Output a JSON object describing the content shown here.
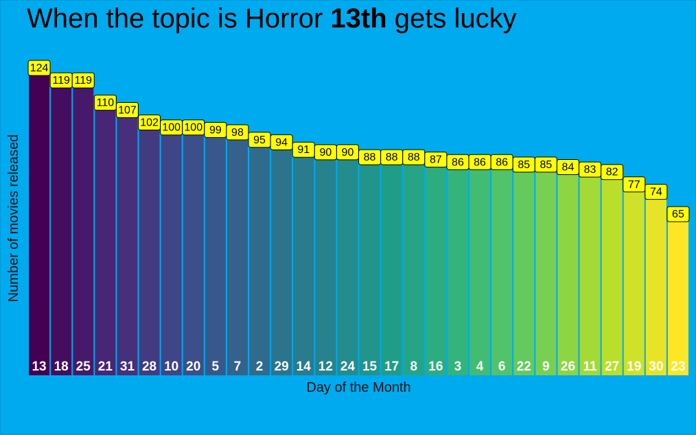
{
  "title": {
    "prefix": "When the topic is Horror ",
    "emphasis": "13th",
    "suffix": " gets lucky"
  },
  "chart_data": {
    "type": "bar",
    "xlabel": "Day of the Month",
    "ylabel": "Number of movies released",
    "ylim": [
      0,
      124
    ],
    "grid": false,
    "legend": "none",
    "categories": [
      "13",
      "18",
      "25",
      "21",
      "31",
      "28",
      "10",
      "20",
      "5",
      "7",
      "2",
      "29",
      "14",
      "12",
      "24",
      "15",
      "17",
      "8",
      "16",
      "3",
      "4",
      "6",
      "22",
      "9",
      "26",
      "11",
      "27",
      "19",
      "30",
      "23"
    ],
    "values": [
      124,
      119,
      119,
      110,
      107,
      102,
      100,
      100,
      99,
      98,
      95,
      94,
      91,
      90,
      90,
      88,
      88,
      88,
      87,
      86,
      86,
      86,
      85,
      85,
      84,
      83,
      82,
      77,
      74,
      65
    ],
    "colors": {
      "background": "#00aaee",
      "label_box": "#ffff00",
      "palette": "viridis"
    }
  }
}
